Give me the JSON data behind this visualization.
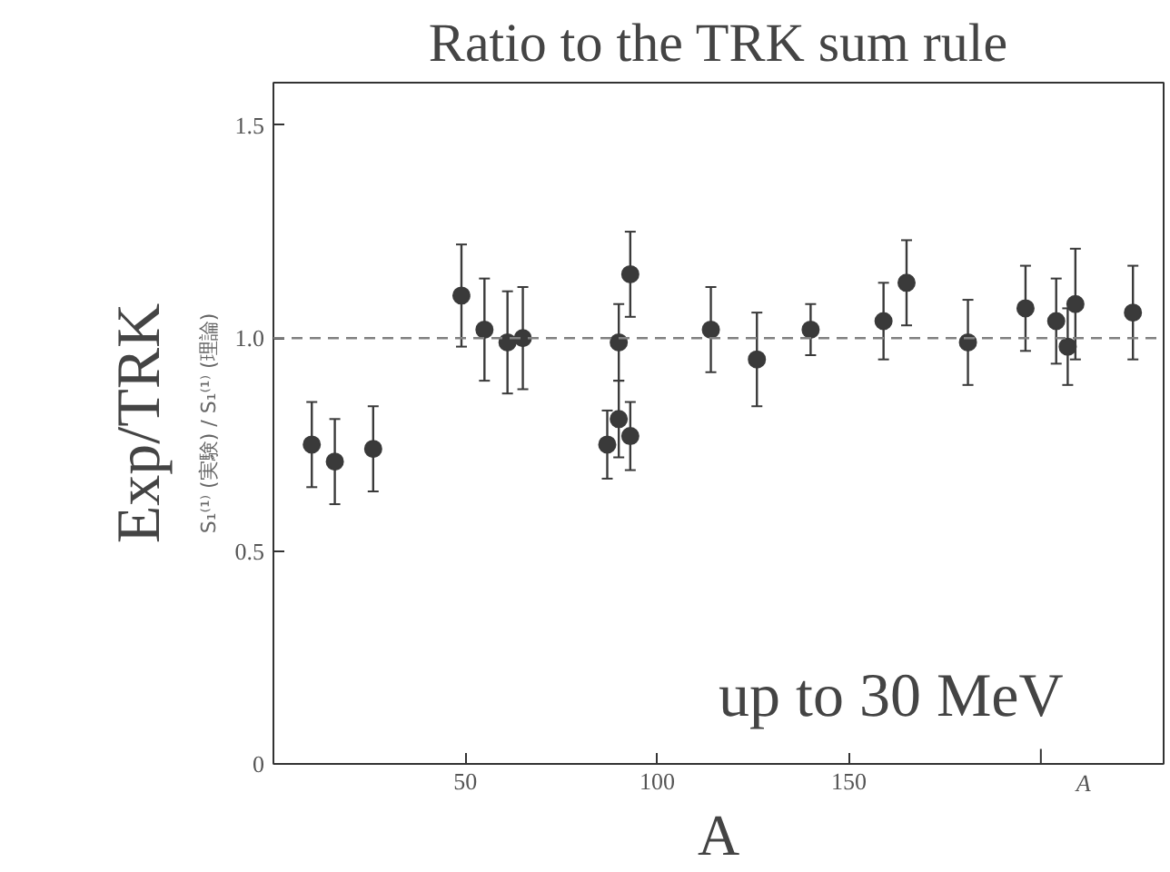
{
  "chart_data": {
    "type": "scatter",
    "title": "Ratio to the TRK sum rule",
    "xlabel": "A",
    "ylabel": "Exp/TRK",
    "annotations": [
      "S₁⁽¹⁾ (実験) / S₁⁽¹⁾ (理論)",
      "up to 30 MeV",
      "A"
    ],
    "x": [
      10,
      16,
      26,
      49,
      55,
      61,
      65,
      87,
      90,
      90,
      93,
      93,
      114,
      126,
      140,
      159,
      165,
      181,
      196,
      204,
      207,
      209,
      224
    ],
    "series": [
      {
        "color": "#3a3a3a",
        "values": [
          0.75,
          0.71,
          0.74,
          1.1,
          1.02,
          0.99,
          1.0,
          0.75,
          0.81,
          0.99,
          0.77,
          1.15,
          1.02,
          0.95,
          1.02,
          1.04,
          1.13,
          0.99,
          1.07,
          1.04,
          0.98,
          1.08,
          1.06
        ],
        "errors": [
          0.1,
          0.1,
          0.1,
          0.12,
          0.12,
          0.12,
          0.12,
          0.08,
          0.09,
          0.09,
          0.08,
          0.1,
          0.1,
          0.11,
          0.06,
          0.09,
          0.1,
          0.1,
          0.1,
          0.1,
          0.09,
          0.13,
          0.11
        ]
      }
    ],
    "xlim": [
      0,
      232
    ],
    "ylim": [
      0,
      1.6
    ],
    "xticks": [
      50,
      100,
      150,
      {
        "value": 200,
        "label": null
      }
    ],
    "yticks": [
      0,
      0.5,
      {
        "value": 1,
        "label": "1.0"
      },
      1.5
    ],
    "ref_lines": [
      {
        "axis": "y",
        "value": 1,
        "label": null,
        "color": "#808080",
        "line_style": "dashed"
      }
    ],
    "grid": false,
    "marker": "circle"
  }
}
